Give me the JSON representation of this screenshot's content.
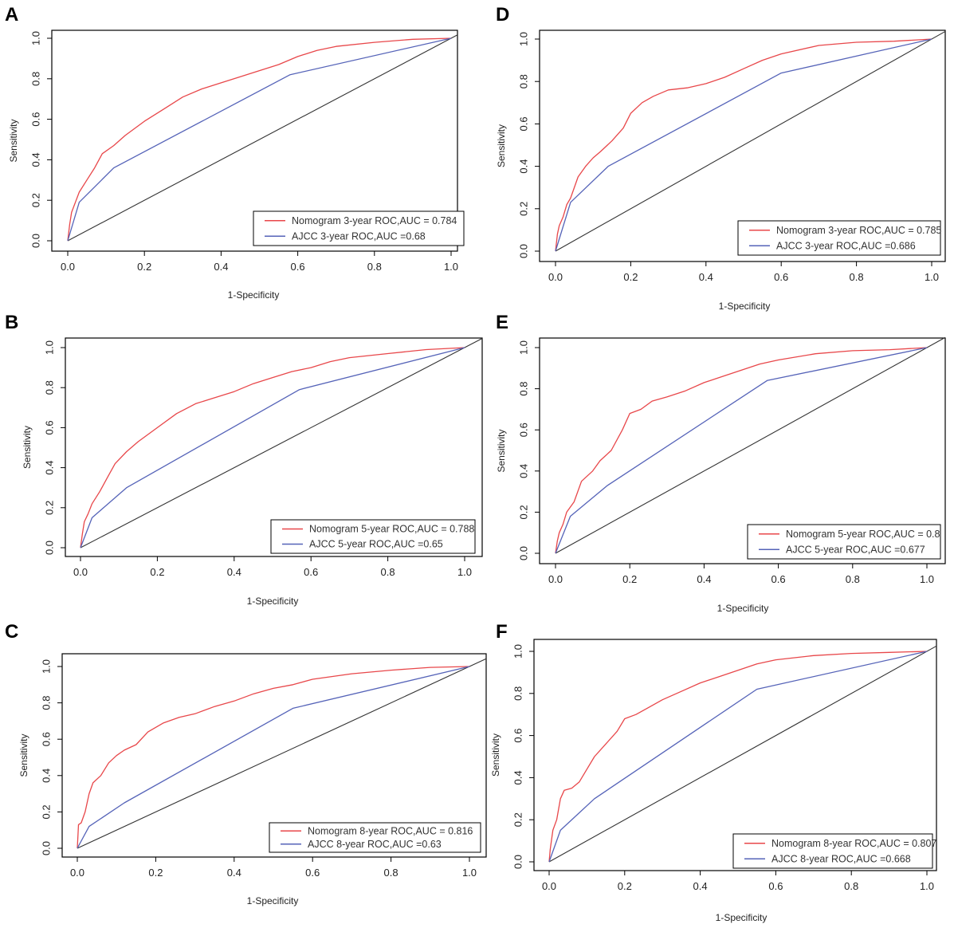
{
  "colors": {
    "nomogram": "#e8474a",
    "ajcc": "#5563b8",
    "diagonal": "#333333",
    "frame": "#000000"
  },
  "chart_data": [
    {
      "panel": "A",
      "type": "line",
      "xlabel": "1-Specificity",
      "ylabel": "Sensitivity",
      "xlim": [
        0,
        1
      ],
      "ylim": [
        0,
        1
      ],
      "xticks": [
        "0.0",
        "0.2",
        "0.4",
        "0.6",
        "0.8",
        "1.0"
      ],
      "yticks": [
        "0.0",
        "0.2",
        "0.4",
        "0.6",
        "0.8",
        "1.0"
      ],
      "legend_position": "bottom-right",
      "series": [
        {
          "name": "Nomogram 3-year ROC,AUC = 0.784",
          "color": "#e8474a",
          "x": [
            0,
            0.005,
            0.01,
            0.02,
            0.03,
            0.05,
            0.07,
            0.09,
            0.12,
            0.15,
            0.2,
            0.25,
            0.3,
            0.35,
            0.4,
            0.45,
            0.5,
            0.55,
            0.6,
            0.65,
            0.7,
            0.8,
            0.9,
            1.0
          ],
          "y": [
            0,
            0.08,
            0.14,
            0.19,
            0.24,
            0.3,
            0.36,
            0.43,
            0.47,
            0.52,
            0.59,
            0.65,
            0.71,
            0.75,
            0.78,
            0.81,
            0.84,
            0.87,
            0.91,
            0.94,
            0.96,
            0.98,
            0.995,
            1.0
          ]
        },
        {
          "name": "AJCC 3-year ROC,AUC =0.68",
          "color": "#5563b8",
          "x": [
            0,
            0.03,
            0.12,
            0.58,
            1.0
          ],
          "y": [
            0,
            0.19,
            0.36,
            0.82,
            1.0
          ]
        }
      ]
    },
    {
      "panel": "B",
      "type": "line",
      "xlabel": "1-Specificity",
      "ylabel": "Sensitivity",
      "xlim": [
        0,
        1
      ],
      "ylim": [
        0,
        1
      ],
      "xticks": [
        "0.0",
        "0.2",
        "0.4",
        "0.6",
        "0.8",
        "1.0"
      ],
      "yticks": [
        "0.0",
        "0.2",
        "0.4",
        "0.6",
        "0.8",
        "1.0"
      ],
      "legend_position": "bottom-right",
      "series": [
        {
          "name": "Nomogram 5-year ROC,AUC = 0.788",
          "color": "#e8474a",
          "x": [
            0,
            0.005,
            0.01,
            0.02,
            0.03,
            0.05,
            0.07,
            0.09,
            0.12,
            0.15,
            0.2,
            0.25,
            0.3,
            0.35,
            0.4,
            0.45,
            0.5,
            0.55,
            0.6,
            0.65,
            0.7,
            0.8,
            0.9,
            1.0
          ],
          "y": [
            0,
            0.07,
            0.13,
            0.17,
            0.22,
            0.28,
            0.35,
            0.42,
            0.48,
            0.53,
            0.6,
            0.67,
            0.72,
            0.75,
            0.78,
            0.82,
            0.85,
            0.88,
            0.9,
            0.93,
            0.95,
            0.97,
            0.99,
            1.0
          ]
        },
        {
          "name": "AJCC 5-year ROC,AUC =0.65",
          "color": "#5563b8",
          "x": [
            0,
            0.03,
            0.12,
            0.57,
            1.0
          ],
          "y": [
            0,
            0.15,
            0.3,
            0.79,
            1.0
          ]
        }
      ]
    },
    {
      "panel": "C",
      "type": "line",
      "xlabel": "1-Specificity",
      "ylabel": "Sensitivity",
      "xlim": [
        0,
        1
      ],
      "ylim": [
        0,
        1
      ],
      "xticks": [
        "0.0",
        "0.2",
        "0.4",
        "0.6",
        "0.8",
        "1.0"
      ],
      "yticks": [
        "0.0",
        "0.2",
        "0.4",
        "0.6",
        "0.8",
        "1.0"
      ],
      "legend_position": "bottom-right",
      "series": [
        {
          "name": "Nomogram 8-year ROC,AUC = 0.816",
          "color": "#e8474a",
          "x": [
            0,
            0.003,
            0.01,
            0.02,
            0.03,
            0.04,
            0.06,
            0.08,
            0.1,
            0.12,
            0.15,
            0.18,
            0.22,
            0.26,
            0.3,
            0.35,
            0.4,
            0.45,
            0.5,
            0.55,
            0.6,
            0.7,
            0.8,
            0.9,
            1.0
          ],
          "y": [
            0,
            0.13,
            0.14,
            0.2,
            0.3,
            0.36,
            0.4,
            0.47,
            0.51,
            0.54,
            0.57,
            0.64,
            0.69,
            0.72,
            0.74,
            0.78,
            0.81,
            0.85,
            0.88,
            0.9,
            0.93,
            0.96,
            0.98,
            0.995,
            1.0
          ]
        },
        {
          "name": "AJCC 8-year ROC,AUC =0.63",
          "color": "#5563b8",
          "x": [
            0,
            0.03,
            0.12,
            0.55,
            1.0
          ],
          "y": [
            0,
            0.12,
            0.25,
            0.77,
            1.0
          ]
        }
      ]
    },
    {
      "panel": "D",
      "type": "line",
      "xlabel": "1-Specificity",
      "ylabel": "Sensitivity",
      "xlim": [
        0,
        1
      ],
      "ylim": [
        0,
        1
      ],
      "xticks": [
        "0.0",
        "0.2",
        "0.4",
        "0.6",
        "0.8",
        "1.0"
      ],
      "yticks": [
        "0.0",
        "0.2",
        "0.4",
        "0.6",
        "0.8",
        "1.0"
      ],
      "legend_position": "bottom-right",
      "series": [
        {
          "name": "Nomogram 3-year ROC,AUC = 0.785",
          "color": "#e8474a",
          "x": [
            0,
            0.005,
            0.01,
            0.02,
            0.03,
            0.04,
            0.06,
            0.08,
            0.1,
            0.12,
            0.15,
            0.18,
            0.2,
            0.23,
            0.26,
            0.3,
            0.35,
            0.4,
            0.45,
            0.5,
            0.55,
            0.6,
            0.7,
            0.8,
            0.9,
            1.0
          ],
          "y": [
            0,
            0.08,
            0.12,
            0.16,
            0.22,
            0.25,
            0.35,
            0.4,
            0.44,
            0.47,
            0.52,
            0.58,
            0.65,
            0.7,
            0.73,
            0.76,
            0.77,
            0.79,
            0.82,
            0.86,
            0.9,
            0.93,
            0.97,
            0.985,
            0.99,
            1.0
          ]
        },
        {
          "name": "AJCC 3-year ROC,AUC =0.686",
          "color": "#5563b8",
          "x": [
            0,
            0.04,
            0.14,
            0.6,
            1.0
          ],
          "y": [
            0,
            0.23,
            0.4,
            0.84,
            1.0
          ]
        }
      ]
    },
    {
      "panel": "E",
      "type": "line",
      "xlabel": "1-Specificity",
      "ylabel": "Sensitivity",
      "xlim": [
        0,
        1
      ],
      "ylim": [
        0,
        1
      ],
      "xticks": [
        "0.0",
        "0.2",
        "0.4",
        "0.6",
        "0.8",
        "1.0"
      ],
      "yticks": [
        "0.0",
        "0.2",
        "0.4",
        "0.6",
        "0.8",
        "1.0"
      ],
      "legend_position": "bottom-right",
      "series": [
        {
          "name": "Nomogram 5-year ROC,AUC = 0.8",
          "color": "#e8474a",
          "x": [
            0,
            0.005,
            0.01,
            0.02,
            0.03,
            0.05,
            0.07,
            0.1,
            0.12,
            0.15,
            0.18,
            0.2,
            0.23,
            0.26,
            0.3,
            0.35,
            0.4,
            0.45,
            0.5,
            0.55,
            0.6,
            0.7,
            0.8,
            0.9,
            1.0
          ],
          "y": [
            0,
            0.06,
            0.1,
            0.14,
            0.2,
            0.25,
            0.35,
            0.4,
            0.45,
            0.5,
            0.6,
            0.68,
            0.7,
            0.74,
            0.76,
            0.79,
            0.83,
            0.86,
            0.89,
            0.92,
            0.94,
            0.97,
            0.985,
            0.99,
            1.0
          ]
        },
        {
          "name": "AJCC 5-year ROC,AUC =0.677",
          "color": "#5563b8",
          "x": [
            0,
            0.04,
            0.14,
            0.57,
            1.0
          ],
          "y": [
            0,
            0.18,
            0.33,
            0.84,
            1.0
          ]
        }
      ]
    },
    {
      "panel": "F",
      "type": "line",
      "xlabel": "1-Specificity",
      "ylabel": "Sensitivity",
      "xlim": [
        0,
        1
      ],
      "ylim": [
        0,
        1
      ],
      "xticks": [
        "0.0",
        "0.2",
        "0.4",
        "0.6",
        "0.8",
        "1.0"
      ],
      "yticks": [
        "0.0",
        "0.2",
        "0.4",
        "0.6",
        "0.8",
        "1.0"
      ],
      "legend_position": "bottom-right",
      "series": [
        {
          "name": "Nomogram 8-year ROC,AUC = 0.807",
          "color": "#e8474a",
          "x": [
            0,
            0.003,
            0.01,
            0.02,
            0.03,
            0.04,
            0.06,
            0.08,
            0.1,
            0.12,
            0.15,
            0.18,
            0.2,
            0.23,
            0.26,
            0.3,
            0.35,
            0.4,
            0.45,
            0.5,
            0.55,
            0.6,
            0.7,
            0.8,
            0.9,
            1.0
          ],
          "y": [
            0,
            0.06,
            0.15,
            0.2,
            0.3,
            0.34,
            0.35,
            0.38,
            0.44,
            0.5,
            0.56,
            0.62,
            0.68,
            0.7,
            0.73,
            0.77,
            0.81,
            0.85,
            0.88,
            0.91,
            0.94,
            0.96,
            0.98,
            0.99,
            0.995,
            1.0
          ]
        },
        {
          "name": "AJCC 8-year ROC,AUC =0.668",
          "color": "#5563b8",
          "x": [
            0,
            0.03,
            0.12,
            0.55,
            1.0
          ],
          "y": [
            0,
            0.15,
            0.3,
            0.82,
            1.0
          ]
        }
      ]
    }
  ]
}
